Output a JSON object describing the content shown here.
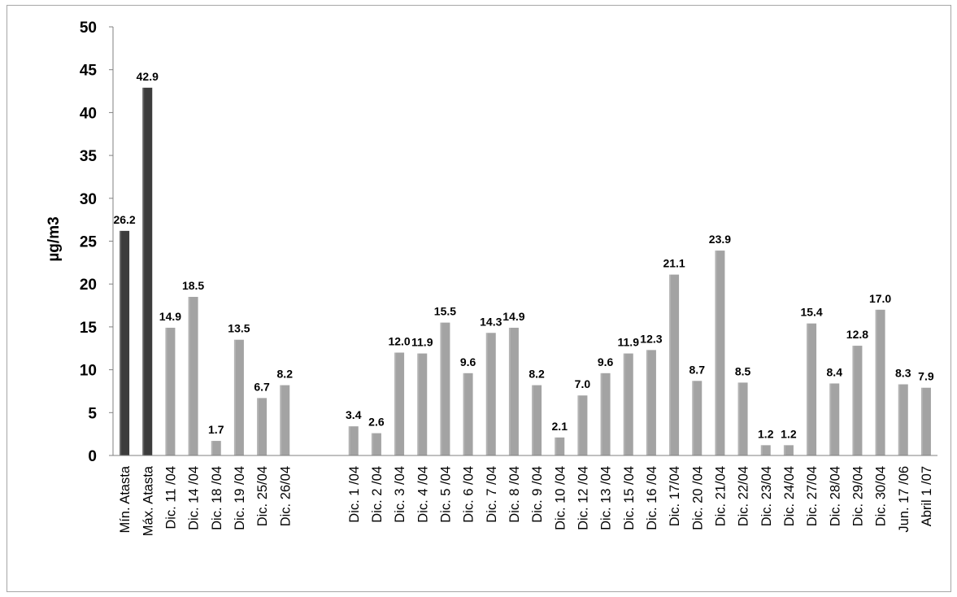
{
  "chart_data": {
    "type": "bar",
    "title": "",
    "xlabel": "",
    "ylabel": "µg/m3",
    "ylim": [
      0,
      50
    ],
    "yticks": [
      0,
      5,
      10,
      15,
      20,
      25,
      30,
      35,
      40,
      45,
      50
    ],
    "grid": false,
    "legend": "none",
    "colors": {
      "dark": "#3c3c3c",
      "light": "#a3a3a3"
    },
    "bars": [
      {
        "category": "Mín. Atasta",
        "value": 26.2,
        "label": "26.2",
        "color": "dark"
      },
      {
        "category": "Máx. Atasta",
        "value": 42.9,
        "label": "42.9",
        "color": "dark"
      },
      {
        "category": "Dic. 11 /04",
        "value": 14.9,
        "label": "14.9",
        "color": "light"
      },
      {
        "category": "Dic. 14 /04",
        "value": 18.5,
        "label": "18.5",
        "color": "light"
      },
      {
        "category": "Dic. 18 /04",
        "value": 1.7,
        "label": "1.7",
        "color": "light"
      },
      {
        "category": "Dic. 19 /04",
        "value": 13.5,
        "label": "13.5",
        "color": "light"
      },
      {
        "category": "Dic. 25/04",
        "value": 6.7,
        "label": "6.7",
        "color": "light"
      },
      {
        "category": "Dic. 26/04",
        "value": 8.2,
        "label": "8.2",
        "color": "light"
      },
      {
        "category": "",
        "value": null,
        "label": "",
        "color": "light"
      },
      {
        "category": "",
        "value": null,
        "label": "",
        "color": "light"
      },
      {
        "category": "Dic. 1 /04",
        "value": 3.4,
        "label": "3.4",
        "color": "light"
      },
      {
        "category": "Dic. 2 /04",
        "value": 2.6,
        "label": "2.6",
        "color": "light"
      },
      {
        "category": "Dic. 3 /04",
        "value": 12.0,
        "label": "12.0",
        "color": "light"
      },
      {
        "category": "Dic. 4 /04",
        "value": 11.9,
        "label": "11.9",
        "color": "light"
      },
      {
        "category": "Dic. 5 /04",
        "value": 15.5,
        "label": "15.5",
        "color": "light"
      },
      {
        "category": "Dic. 6 /04",
        "value": 9.6,
        "label": "9.6",
        "color": "light"
      },
      {
        "category": "Dic. 7 /04",
        "value": 14.3,
        "label": "14.3",
        "color": "light"
      },
      {
        "category": "Dic. 8 /04",
        "value": 14.9,
        "label": "14.9",
        "color": "light"
      },
      {
        "category": "Dic. 9 /04",
        "value": 8.2,
        "label": "8.2",
        "color": "light"
      },
      {
        "category": "Dic. 10 /04",
        "value": 2.1,
        "label": "2.1",
        "color": "light"
      },
      {
        "category": "Dic. 12 /04",
        "value": 7.0,
        "label": "7.0",
        "color": "light"
      },
      {
        "category": "Dic. 13 /04",
        "value": 9.6,
        "label": "9.6",
        "color": "light"
      },
      {
        "category": "Dic. 15 /04",
        "value": 11.9,
        "label": "11.9",
        "color": "light"
      },
      {
        "category": "Dic. 16 /04",
        "value": 12.3,
        "label": "12.3",
        "color": "light"
      },
      {
        "category": "Dic. 17/04",
        "value": 21.1,
        "label": "21.1",
        "color": "light"
      },
      {
        "category": "Dic. 20 /04",
        "value": 8.7,
        "label": "8.7",
        "color": "light"
      },
      {
        "category": "Dic. 21/04",
        "value": 23.9,
        "label": "23.9",
        "color": "light"
      },
      {
        "category": "Dic. 22/04",
        "value": 8.5,
        "label": "8.5",
        "color": "light"
      },
      {
        "category": "Dic. 23/04",
        "value": 1.2,
        "label": "1.2",
        "color": "light"
      },
      {
        "category": "Dic. 24/04",
        "value": 1.2,
        "label": "1.2",
        "color": "light"
      },
      {
        "category": "Dic. 27/04",
        "value": 15.4,
        "label": "15.4",
        "color": "light"
      },
      {
        "category": "Dic. 28/04",
        "value": 8.4,
        "label": "8.4",
        "color": "light"
      },
      {
        "category": "Dic. 29/04",
        "value": 12.8,
        "label": "12.8",
        "color": "light"
      },
      {
        "category": "Dic. 30/04",
        "value": 17.0,
        "label": "17.0",
        "color": "light"
      },
      {
        "category": "Jun. 17 /06",
        "value": 8.3,
        "label": "8.3",
        "color": "light"
      },
      {
        "category": "Abril 1 /07",
        "value": 7.9,
        "label": "7.9",
        "color": "light"
      }
    ]
  }
}
